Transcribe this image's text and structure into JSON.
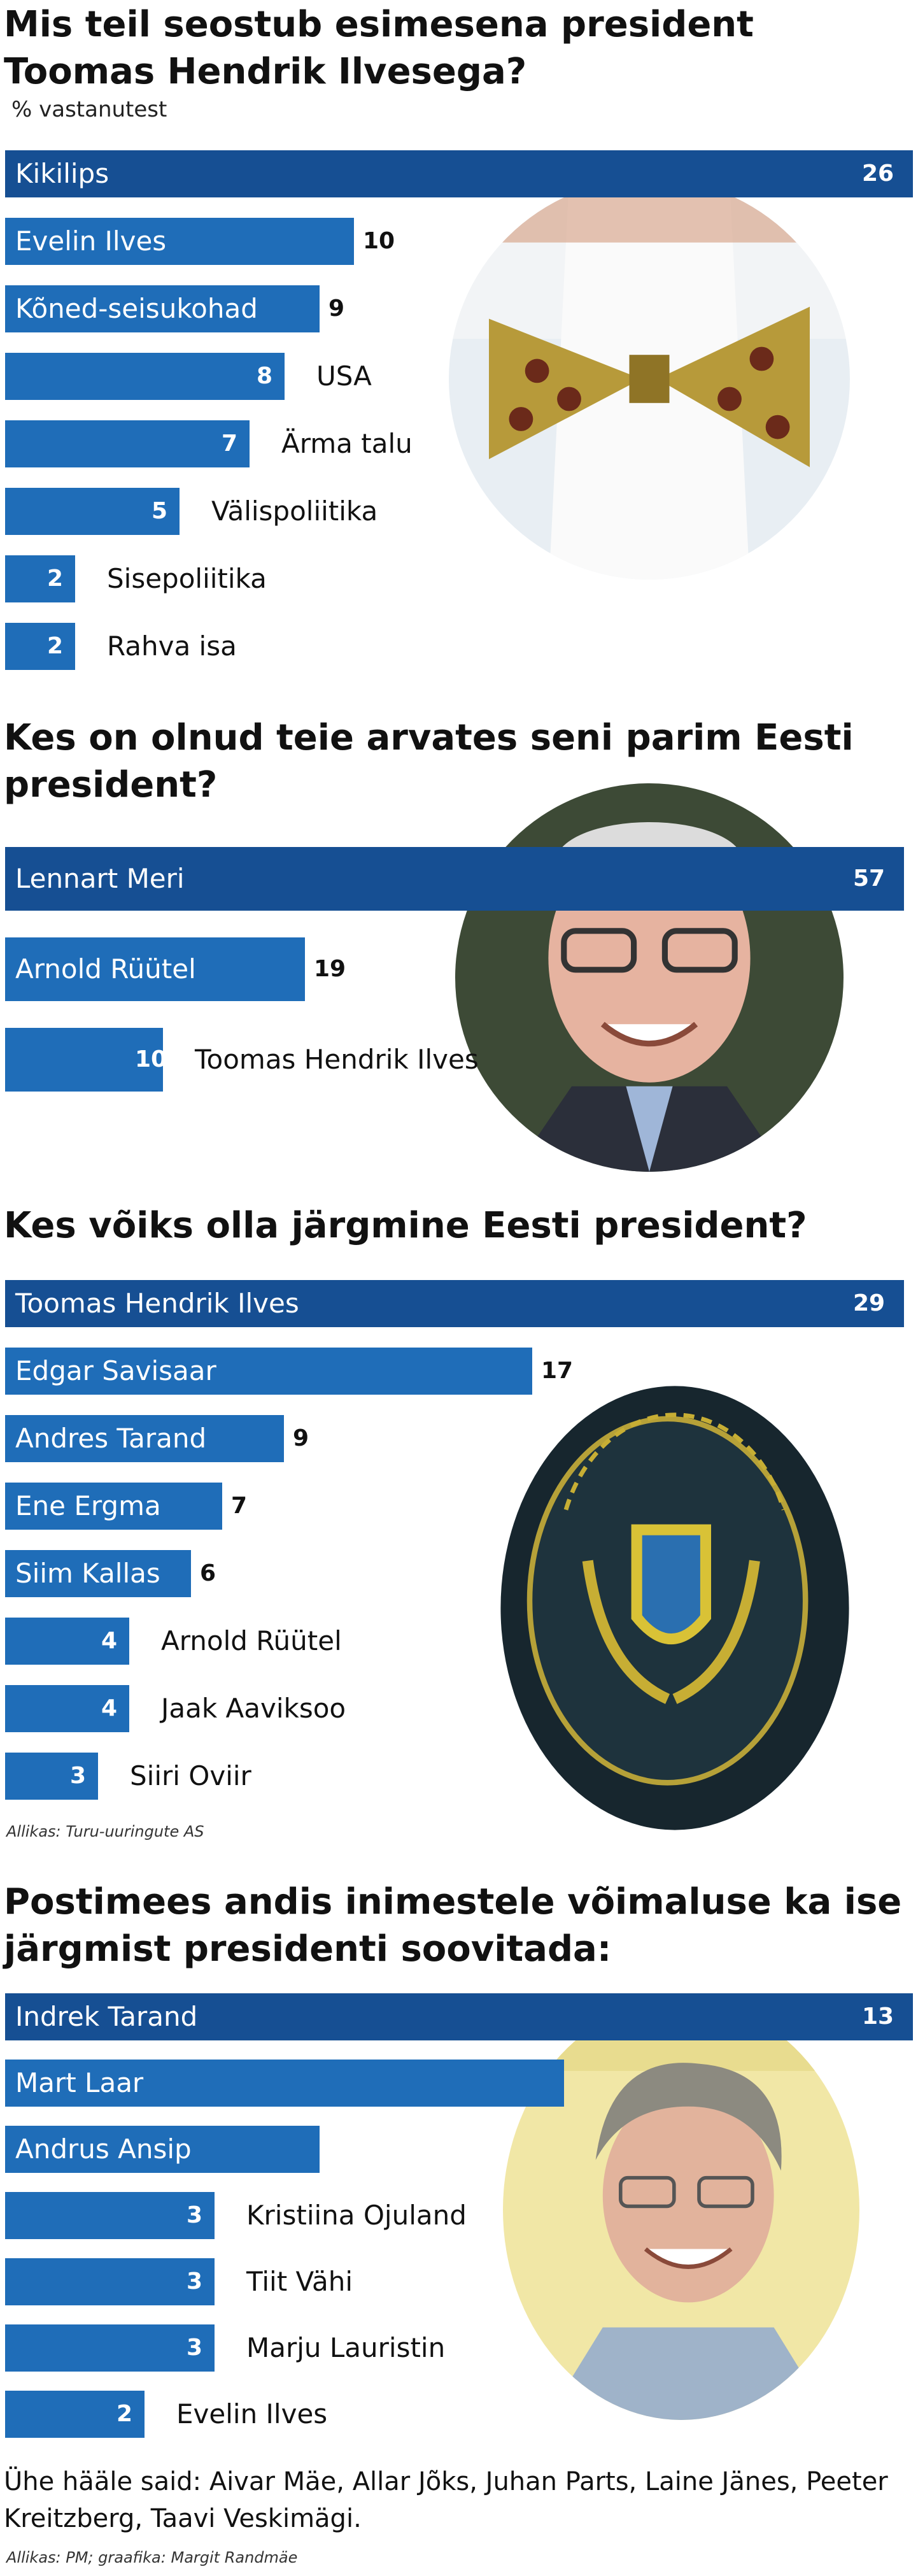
{
  "chart_data": [
    {
      "type": "bar",
      "orientation": "horizontal",
      "title": "Mis teil seostub esimesena president Toomas Hendrik Ilvesega?",
      "subtitle": "% vastanutest",
      "categories": [
        "Kikilips",
        "Evelin Ilves",
        "Kõned-seisukohad",
        "USA",
        "Ärma talu",
        "Välispoliitika",
        "Sisepoliitika",
        "Rahva isa"
      ],
      "values": [
        26,
        10,
        9,
        8,
        7,
        5,
        2,
        2
      ],
      "xlim": [
        0,
        26
      ]
    },
    {
      "type": "bar",
      "orientation": "horizontal",
      "title": "Kes on olnud teie arvates seni parim Eesti president?",
      "categories": [
        "Lennart Meri",
        "Arnold Rüütel",
        "Toomas Hendrik Ilves"
      ],
      "values": [
        57,
        19,
        10
      ],
      "xlim": [
        0,
        57
      ]
    },
    {
      "type": "bar",
      "orientation": "horizontal",
      "title": "Kes võiks olla järgmine Eesti president?",
      "categories": [
        "Toomas Hendrik Ilves",
        "Edgar Savisaar",
        "Andres Tarand",
        "Ene Ergma",
        "Siim Kallas",
        "Arnold Rüütel",
        "Jaak Aaviksoo",
        "Siiri Oviir"
      ],
      "values": [
        29,
        17,
        9,
        7,
        6,
        4,
        4,
        3
      ],
      "xlim": [
        0,
        29
      ],
      "source": "Allikas: Turu-uuringute AS"
    },
    {
      "type": "bar",
      "orientation": "horizontal",
      "title": "Postimees andis inimestele võimaluse ka ise järgmist presidenti soovitada:",
      "categories": [
        "Indrek Tarand",
        "Mart Laar",
        "Andrus Ansip",
        "Kristiina Ojuland",
        "Tiit Vähi",
        "Marju Lauristin",
        "Evelin Ilves"
      ],
      "values": [
        13,
        8,
        4.5,
        3,
        3,
        3,
        2
      ],
      "value_labels": [
        "13",
        "",
        "",
        "3",
        "3",
        "3",
        "2"
      ],
      "xlim": [
        0,
        13
      ]
    }
  ],
  "footer": {
    "note": "Ühe hääle said: Aivar Mäe, Allar Jõks, Juhan Parts, Laine Jänes, Peeter Kreitzberg, Taavi Veskimägi.",
    "source": "Allikas: PM; graafika: Margit Randmäe"
  }
}
